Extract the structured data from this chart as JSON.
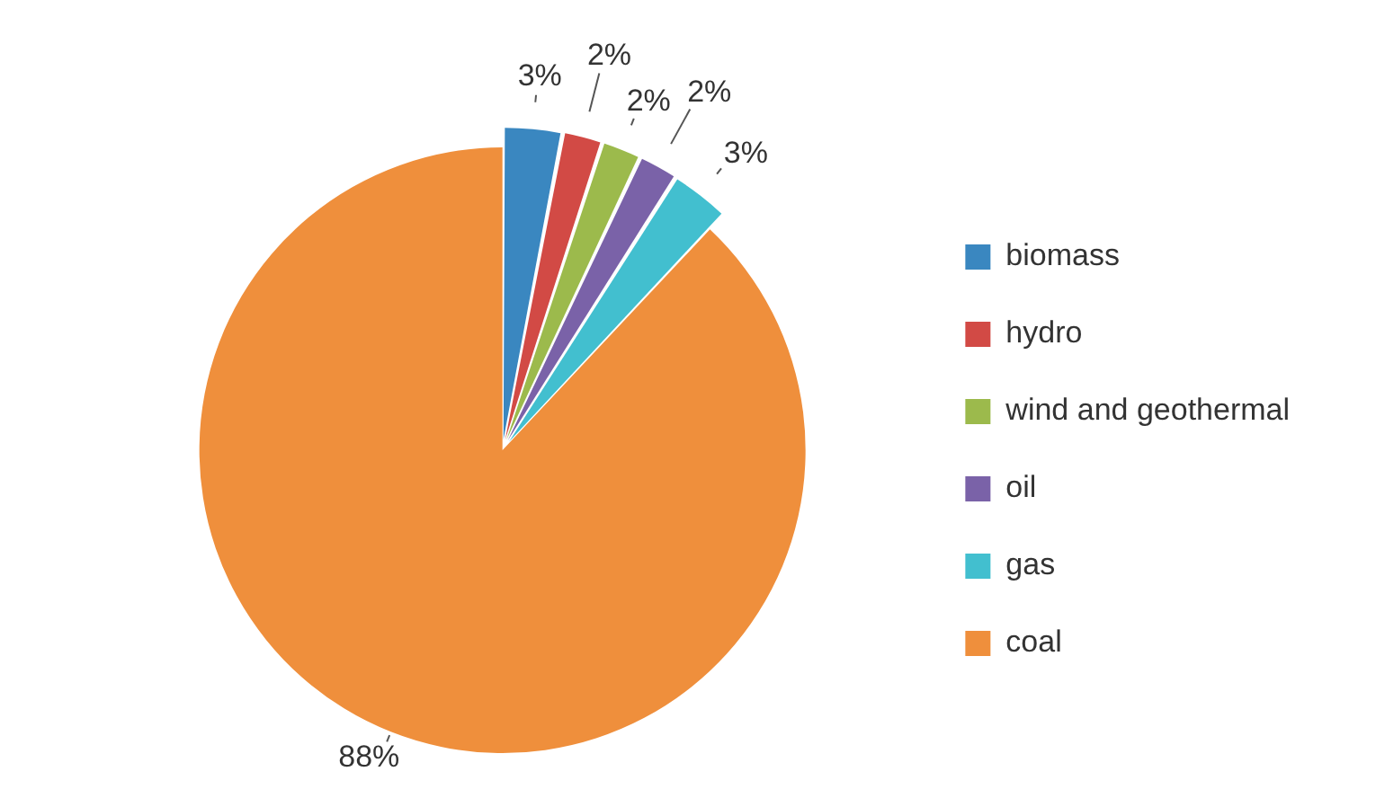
{
  "chart_data": {
    "type": "pie",
    "categories": [
      "biomass",
      "hydro",
      "wind and geothermal",
      "oil",
      "gas",
      "coal"
    ],
    "values": [
      3,
      2,
      2,
      2,
      3,
      88
    ],
    "colors": [
      "#3a87c0",
      "#d24a45",
      "#9cba4c",
      "#7a62a8",
      "#42bfcf",
      "#ef8f3c"
    ],
    "value_labels": [
      "3%",
      "2%",
      "2%",
      "2%",
      "3%",
      "88%"
    ],
    "legend": "right"
  }
}
